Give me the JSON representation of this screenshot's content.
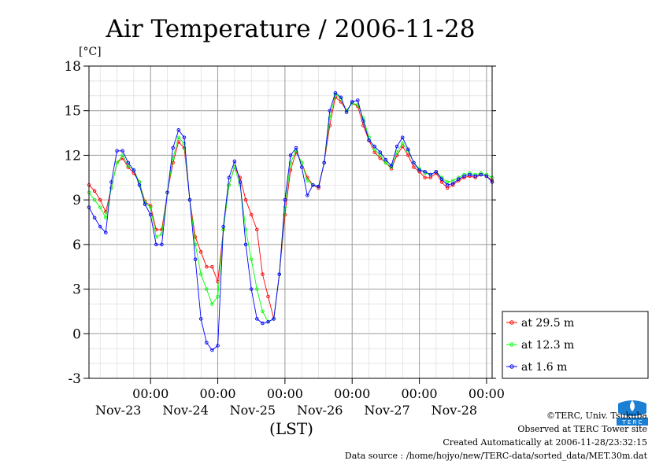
{
  "chart_data": {
    "type": "line",
    "title": "Air Temperature / 2006-11-28",
    "ylabel": "[°C]",
    "xlabel": "(LST)",
    "ylim": [
      -3,
      18
    ],
    "yticks": [
      -3,
      0,
      3,
      6,
      9,
      12,
      15,
      18
    ],
    "x_unit": "hours since 2006-11-22 00:00 LST",
    "xlim": [
      2,
      146
    ],
    "xticks": [
      {
        "x": 24,
        "time": "00:00",
        "date": "Nov-23"
      },
      {
        "x": 48,
        "time": "00:00",
        "date": "Nov-24"
      },
      {
        "x": 72,
        "time": "00:00",
        "date": "Nov-25"
      },
      {
        "x": 96,
        "time": "00:00",
        "date": "Nov-26"
      },
      {
        "x": 120,
        "time": "00:00",
        "date": "Nov-27"
      },
      {
        "x": 144,
        "time": "00:00",
        "date": "Nov-28"
      }
    ],
    "grid": true,
    "legend_position": "bottom-right outside",
    "series": [
      {
        "name": "at 29.5 m",
        "color": "#ff0000",
        "x": [
          2,
          4,
          6,
          8,
          10,
          12,
          14,
          16,
          18,
          20,
          22,
          24,
          26,
          28,
          30,
          32,
          34,
          36,
          38,
          40,
          42,
          44,
          46,
          48,
          50,
          52,
          54,
          56,
          58,
          60,
          62,
          64,
          66,
          68,
          70,
          72,
          74,
          76,
          78,
          80,
          82,
          84,
          86,
          88,
          90,
          92,
          94,
          96,
          98,
          100,
          102,
          104,
          106,
          108,
          110,
          112,
          114,
          116,
          118,
          120,
          122,
          124,
          126,
          128,
          130,
          132,
          134,
          136,
          138,
          140,
          142,
          144,
          146
        ],
        "values": [
          10.0,
          9.6,
          9.0,
          8.2,
          9.8,
          11.5,
          11.8,
          11.2,
          10.8,
          10.2,
          8.9,
          8.6,
          7.0,
          7.0,
          9.5,
          11.5,
          12.9,
          12.5,
          9.0,
          6.5,
          5.5,
          4.5,
          4.5,
          3.5,
          7.0,
          10.0,
          11.2,
          10.5,
          9.0,
          8.0,
          7.0,
          4.0,
          2.5,
          1.0,
          4.0,
          8.0,
          11.0,
          12.2,
          11.5,
          10.5,
          10.0,
          9.8,
          11.5,
          14.0,
          15.9,
          15.6,
          15.0,
          15.5,
          15.3,
          14.0,
          13.0,
          12.2,
          11.8,
          11.5,
          11.1,
          12.0,
          12.6,
          12.0,
          11.2,
          10.9,
          10.5,
          10.5,
          10.8,
          10.2,
          9.8,
          10.0,
          10.3,
          10.5,
          10.6,
          10.5,
          10.7,
          10.6,
          10.3
        ]
      },
      {
        "name": "at 12.3 m",
        "color": "#00ff00",
        "x": [
          2,
          4,
          6,
          8,
          10,
          12,
          14,
          16,
          18,
          20,
          22,
          24,
          26,
          28,
          30,
          32,
          34,
          36,
          38,
          40,
          42,
          44,
          46,
          48,
          50,
          52,
          54,
          56,
          58,
          60,
          62,
          64,
          66,
          68,
          70,
          72,
          74,
          76,
          78,
          80,
          82,
          84,
          86,
          88,
          90,
          92,
          94,
          96,
          98,
          100,
          102,
          104,
          106,
          108,
          110,
          112,
          114,
          116,
          118,
          120,
          122,
          124,
          126,
          128,
          130,
          132,
          134,
          136,
          138,
          140,
          142,
          144,
          146
        ],
        "values": [
          9.5,
          9.0,
          8.5,
          7.8,
          9.8,
          11.5,
          12.0,
          11.3,
          11.0,
          10.2,
          8.8,
          8.5,
          6.5,
          6.7,
          9.5,
          11.8,
          13.2,
          12.8,
          9.0,
          6.0,
          4.0,
          3.0,
          2.0,
          2.5,
          7.0,
          10.0,
          11.2,
          10.0,
          7.0,
          5.0,
          3.0,
          1.5,
          0.8,
          1.0,
          4.0,
          8.5,
          11.5,
          12.3,
          11.5,
          10.3,
          10.0,
          9.9,
          11.5,
          14.5,
          16.1,
          15.8,
          15.0,
          15.5,
          15.4,
          14.5,
          13.2,
          12.4,
          12.0,
          11.5,
          11.2,
          12.2,
          12.8,
          12.3,
          11.5,
          11.1,
          10.8,
          10.7,
          10.9,
          10.5,
          10.2,
          10.3,
          10.5,
          10.7,
          10.8,
          10.7,
          10.8,
          10.7,
          10.5
        ]
      },
      {
        "name": "at 1.6 m",
        "color": "#0000ff",
        "x": [
          2,
          4,
          6,
          8,
          10,
          12,
          14,
          16,
          18,
          20,
          22,
          24,
          26,
          28,
          30,
          32,
          34,
          36,
          38,
          40,
          42,
          44,
          46,
          48,
          50,
          52,
          54,
          56,
          58,
          60,
          62,
          64,
          66,
          68,
          70,
          72,
          74,
          76,
          78,
          80,
          82,
          84,
          86,
          88,
          90,
          92,
          94,
          96,
          98,
          100,
          102,
          104,
          106,
          108,
          110,
          112,
          114,
          116,
          118,
          120,
          122,
          124,
          126,
          128,
          130,
          132,
          134,
          136,
          138,
          140,
          142,
          144,
          146
        ],
        "values": [
          8.5,
          7.8,
          7.2,
          6.8,
          10.2,
          12.3,
          12.3,
          11.5,
          11.0,
          10.0,
          8.7,
          8.0,
          6.0,
          6.0,
          9.5,
          12.5,
          13.7,
          13.2,
          9.0,
          5.0,
          1.0,
          -0.6,
          -1.1,
          -0.8,
          7.2,
          10.5,
          11.6,
          10.2,
          6.0,
          3.0,
          1.0,
          0.7,
          0.8,
          1.0,
          4.0,
          9.0,
          12.0,
          12.5,
          11.2,
          9.3,
          10.0,
          9.9,
          11.5,
          15.0,
          16.2,
          15.9,
          14.9,
          15.6,
          15.7,
          14.3,
          13.0,
          12.6,
          12.2,
          11.7,
          11.3,
          12.6,
          13.2,
          12.4,
          11.5,
          11.0,
          10.9,
          10.7,
          10.9,
          10.4,
          10.0,
          10.1,
          10.4,
          10.6,
          10.7,
          10.6,
          10.7,
          10.6,
          10.2
        ]
      }
    ]
  },
  "footer": {
    "copyright": "©TERC, Univ. Tsukuba",
    "observed": "Observed at TERC Tower site",
    "created": "Created Automatically at 2006-11-28/23:32:15",
    "source": "Data source : /home/hojyo/new/TERC-data/sorted_data/MET.30m.dat",
    "logo_text": "T E R C"
  }
}
